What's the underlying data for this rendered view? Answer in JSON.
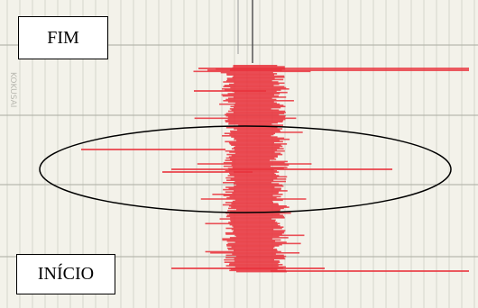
{
  "labels": {
    "end": "FIM",
    "start": "INÍCIO"
  },
  "paper_brand": "KOKUSAI"
}
